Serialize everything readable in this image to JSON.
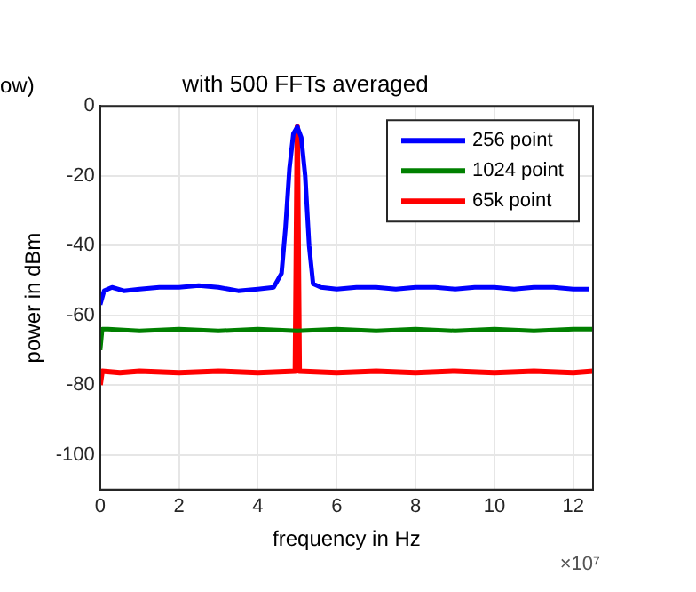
{
  "chart_data": {
    "type": "line",
    "title": "with 500 FFTs averaged",
    "xlabel": "frequency in Hz",
    "ylabel": "power in dBm",
    "annotations": [
      "ow)",
      "×10⁷"
    ],
    "xlim": [
      0,
      12.5
    ],
    "xticks": [
      0,
      2,
      4,
      6,
      8,
      10,
      12
    ],
    "ylim": [
      -110,
      0
    ],
    "yticks": [
      -100,
      -80,
      -60,
      -40,
      -20,
      0
    ],
    "grid": true,
    "legend": "top right",
    "marker": "none",
    "line_style": "solid",
    "series": [
      {
        "name": "256 point",
        "color": "#0000ff",
        "x": [
          0,
          0.1,
          0.3,
          0.6,
          1,
          1.5,
          2,
          2.5,
          3,
          3.5,
          4,
          4.4,
          4.6,
          4.7,
          4.8,
          4.9,
          5,
          5.1,
          5.2,
          5.3,
          5.4,
          5.6,
          6,
          6.5,
          7,
          7.5,
          8,
          8.5,
          9,
          9.5,
          10,
          10.5,
          11,
          11.5,
          12,
          12.4
        ],
        "values": [
          -57,
          -53,
          -52,
          -53,
          -52.5,
          -52,
          -52,
          -51.5,
          -52,
          -53,
          -52.5,
          -52,
          -48,
          -35,
          -18,
          -8,
          -6,
          -9,
          -20,
          -40,
          -51,
          -52,
          -52.5,
          -52,
          -52,
          -52.5,
          -52,
          -52,
          -52.5,
          -52,
          -52,
          -52.5,
          -52,
          -52,
          -52.5,
          -52.5
        ]
      },
      {
        "name": "1024 point",
        "color": "#008000",
        "x": [
          0,
          0.05,
          0.2,
          1,
          2,
          3,
          4,
          5,
          6,
          7,
          8,
          9,
          10,
          11,
          12,
          12.5
        ],
        "values": [
          -70,
          -64,
          -64,
          -64.5,
          -64,
          -64.5,
          -64,
          -64.5,
          -64,
          -64.5,
          -64,
          -64.5,
          -64,
          -64.5,
          -64,
          -64
        ]
      },
      {
        "name": "65k point",
        "color": "#ff0000",
        "x": [
          0,
          0.05,
          0.5,
          1,
          2,
          3,
          4,
          4.95,
          5,
          5.05,
          6,
          7,
          8,
          9,
          10,
          11,
          12,
          12.5
        ],
        "values": [
          -80,
          -76,
          -76.5,
          -76,
          -76.5,
          -76,
          -76.5,
          -76,
          -6,
          -76,
          -76.5,
          -76,
          -76.5,
          -76,
          -76.5,
          -76,
          -76.5,
          -76
        ]
      }
    ]
  }
}
